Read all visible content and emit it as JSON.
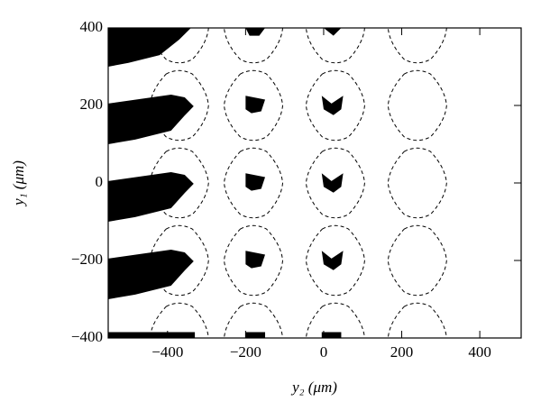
{
  "chart_data": {
    "type": "region-map",
    "x_label": "y₂ (μm)",
    "y_label": "y₁ (μm)",
    "xlim": [
      -552,
      506
    ],
    "ylim": [
      -400,
      400
    ],
    "xticks": [
      {
        "value": -400,
        "label": "−400"
      },
      {
        "value": -200,
        "label": "−200"
      },
      0,
      200,
      400
    ],
    "yticks": [
      {
        "value": -400,
        "label": "−400"
      },
      {
        "value": -200,
        "label": "−200"
      },
      0,
      200,
      400
    ],
    "region_color": "#000000",
    "contour_color": "#000000",
    "regions": [
      {
        "points": [
          [
            -552,
            400
          ],
          [
            -340,
            400
          ],
          [
            -370,
            370
          ],
          [
            -420,
            330
          ],
          [
            -500,
            310
          ],
          [
            -552,
            300
          ]
        ]
      },
      {
        "points": [
          [
            -552,
            205
          ],
          [
            -391,
            228
          ],
          [
            -356,
            221
          ],
          [
            -333,
            198
          ],
          [
            -356,
            174
          ],
          [
            -391,
            135
          ],
          [
            -483,
            112
          ],
          [
            -552,
            100
          ]
        ]
      },
      {
        "points": [
          [
            -552,
            5
          ],
          [
            -391,
            28
          ],
          [
            -356,
            21
          ],
          [
            -333,
            -2
          ],
          [
            -356,
            -26
          ],
          [
            -391,
            -65
          ],
          [
            -483,
            -88
          ],
          [
            -552,
            -100
          ]
        ]
      },
      {
        "points": [
          [
            -552,
            -195
          ],
          [
            -391,
            -172
          ],
          [
            -356,
            -179
          ],
          [
            -333,
            -202
          ],
          [
            -356,
            -226
          ],
          [
            -391,
            -265
          ],
          [
            -483,
            -288
          ],
          [
            -552,
            -300
          ]
        ]
      },
      {
        "points": [
          [
            -552,
            -385
          ],
          [
            -330,
            -385
          ],
          [
            -330,
            -400
          ],
          [
            -552,
            -400
          ]
        ]
      },
      {
        "points": [
          [
            -200,
            400
          ],
          [
            -150,
            400
          ],
          [
            -165,
            380
          ],
          [
            -190,
            380
          ]
        ]
      },
      {
        "points": [
          [
            0,
            400
          ],
          [
            45,
            400
          ],
          [
            25,
            380
          ]
        ]
      },
      {
        "points": [
          [
            -200,
            225
          ],
          [
            -150,
            215
          ],
          [
            -160,
            185
          ],
          [
            -185,
            180
          ],
          [
            -200,
            190
          ]
        ]
      },
      {
        "points": [
          [
            -5,
            225
          ],
          [
            20,
            205
          ],
          [
            50,
            225
          ],
          [
            45,
            190
          ],
          [
            25,
            175
          ],
          [
            0,
            190
          ]
        ]
      },
      {
        "points": [
          [
            -200,
            25
          ],
          [
            -150,
            15
          ],
          [
            -160,
            -15
          ],
          [
            -185,
            -20
          ],
          [
            -200,
            -10
          ]
        ]
      },
      {
        "points": [
          [
            -5,
            25
          ],
          [
            20,
            5
          ],
          [
            50,
            25
          ],
          [
            45,
            -10
          ],
          [
            25,
            -25
          ],
          [
            0,
            -10
          ]
        ]
      },
      {
        "points": [
          [
            -200,
            -175
          ],
          [
            -150,
            -185
          ],
          [
            -160,
            -215
          ],
          [
            -185,
            -220
          ],
          [
            -200,
            -210
          ]
        ]
      },
      {
        "points": [
          [
            -5,
            -175
          ],
          [
            20,
            -195
          ],
          [
            50,
            -175
          ],
          [
            45,
            -210
          ],
          [
            25,
            -225
          ],
          [
            0,
            -210
          ]
        ]
      },
      {
        "points": [
          [
            -200,
            -385
          ],
          [
            -150,
            -385
          ],
          [
            -150,
            -400
          ],
          [
            -200,
            -400
          ]
        ]
      },
      {
        "points": [
          [
            -5,
            -385
          ],
          [
            45,
            -385
          ],
          [
            45,
            -400
          ],
          [
            -5,
            -400
          ]
        ]
      }
    ],
    "contours": [
      {
        "x": -370,
        "y": 400,
        "rx": 75,
        "ry": 90
      },
      {
        "x": -180,
        "y": 400,
        "rx": 75,
        "ry": 90
      },
      {
        "x": 30,
        "y": 400,
        "rx": 75,
        "ry": 90
      },
      {
        "x": 240,
        "y": 400,
        "rx": 75,
        "ry": 90
      },
      {
        "x": -370,
        "y": 200,
        "rx": 75,
        "ry": 90
      },
      {
        "x": -180,
        "y": 200,
        "rx": 75,
        "ry": 90
      },
      {
        "x": 30,
        "y": 200,
        "rx": 75,
        "ry": 90
      },
      {
        "x": 240,
        "y": 200,
        "rx": 75,
        "ry": 90
      },
      {
        "x": -370,
        "y": 0,
        "rx": 75,
        "ry": 90
      },
      {
        "x": -180,
        "y": 0,
        "rx": 75,
        "ry": 90
      },
      {
        "x": 30,
        "y": 0,
        "rx": 75,
        "ry": 90
      },
      {
        "x": 240,
        "y": 0,
        "rx": 75,
        "ry": 90
      },
      {
        "x": -370,
        "y": -200,
        "rx": 75,
        "ry": 90
      },
      {
        "x": -180,
        "y": -200,
        "rx": 75,
        "ry": 90
      },
      {
        "x": 30,
        "y": -200,
        "rx": 75,
        "ry": 90
      },
      {
        "x": 240,
        "y": -200,
        "rx": 75,
        "ry": 90
      },
      {
        "x": -370,
        "y": -400,
        "rx": 75,
        "ry": 90
      },
      {
        "x": -180,
        "y": -400,
        "rx": 75,
        "ry": 90
      },
      {
        "x": 30,
        "y": -400,
        "rx": 75,
        "ry": 90
      },
      {
        "x": 240,
        "y": -400,
        "rx": 75,
        "ry": 90
      }
    ]
  }
}
